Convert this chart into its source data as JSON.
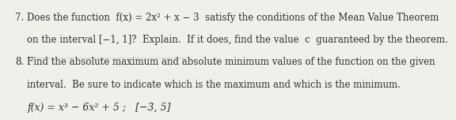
{
  "background_color": "#f0f0eb",
  "items": [
    {
      "number": "7.",
      "lines": [
        "Does the function  f(x) = 2x² + x − 3  satisfy the conditions of the Mean Value Theorem",
        "on the interval [−1, 1]?  Explain.  If it does, find the value  c  guaranteed by the theorem."
      ],
      "extra": null
    },
    {
      "number": "8.",
      "lines": [
        "Find the absolute maximum and absolute minimum values of the function on the given",
        "interval.  Be sure to indicate which is the maximum and which is the minimum."
      ],
      "extra": "f(x) = x³ − 6x² + 5 ;   [−3, 5]"
    }
  ],
  "font_size_main": 8.5,
  "font_size_number": 8.5,
  "font_size_extra": 9.0,
  "text_color": "#2e2e2e",
  "divider_color": "#bbbbbb"
}
